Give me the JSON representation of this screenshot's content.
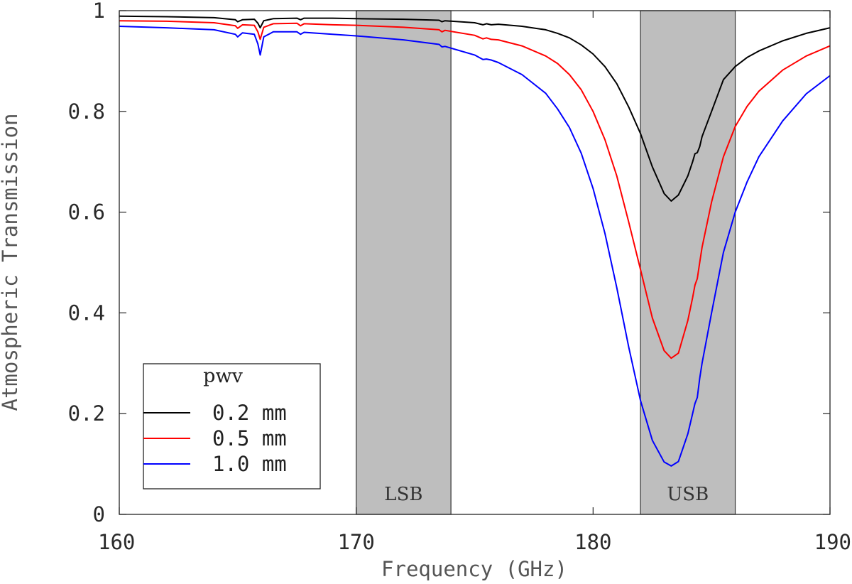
{
  "chart_data": {
    "type": "line",
    "xlabel": "Frequency (GHz)",
    "ylabel": "Atmospheric Transmission",
    "xlim": [
      160,
      190
    ],
    "ylim": [
      0,
      1
    ],
    "x_ticks": [
      160,
      170,
      180,
      190
    ],
    "y_ticks": [
      0,
      0.2,
      0.4,
      0.6,
      0.8,
      1
    ],
    "x_tick_labels": [
      "160",
      "170",
      "180",
      "190"
    ],
    "y_tick_labels": [
      "0",
      "0.2",
      "0.4",
      "0.6",
      "0.8",
      "1"
    ],
    "grid": false,
    "bands": [
      {
        "label": "LSB",
        "from": 170,
        "to": 174,
        "color": "#bebebe"
      },
      {
        "label": "USB",
        "from": 182,
        "to": 186,
        "color": "#bebebe"
      }
    ],
    "legend": {
      "title": "pwv",
      "placement": "bottom-left",
      "entries": [
        "0.2 mm",
        "0.5 mm",
        "1.0 mm"
      ]
    },
    "series": [
      {
        "name": "0.2 mm",
        "color": "#000000",
        "points": [
          [
            160,
            0.989
          ],
          [
            162,
            0.988
          ],
          [
            164,
            0.986
          ],
          [
            164.9,
            0.982
          ],
          [
            165.0,
            0.978
          ],
          [
            165.2,
            0.982
          ],
          [
            165.7,
            0.983
          ],
          [
            165.85,
            0.975
          ],
          [
            165.95,
            0.966
          ],
          [
            166.1,
            0.98
          ],
          [
            166.5,
            0.984
          ],
          [
            167.5,
            0.985
          ],
          [
            167.65,
            0.982
          ],
          [
            167.8,
            0.985
          ],
          [
            169,
            0.985
          ],
          [
            170,
            0.984
          ],
          [
            172,
            0.983
          ],
          [
            173.5,
            0.981
          ],
          [
            173.62,
            0.978
          ],
          [
            173.75,
            0.98
          ],
          [
            175,
            0.976
          ],
          [
            175.35,
            0.972
          ],
          [
            175.5,
            0.974
          ],
          [
            175.7,
            0.972
          ],
          [
            176,
            0.973
          ],
          [
            177,
            0.969
          ],
          [
            178,
            0.962
          ],
          [
            178.5,
            0.955
          ],
          [
            179,
            0.946
          ],
          [
            179.5,
            0.932
          ],
          [
            180,
            0.914
          ],
          [
            180.5,
            0.889
          ],
          [
            181,
            0.855
          ],
          [
            181.5,
            0.809
          ],
          [
            182,
            0.756
          ],
          [
            182.5,
            0.69
          ],
          [
            183,
            0.637
          ],
          [
            183.3,
            0.622
          ],
          [
            183.6,
            0.634
          ],
          [
            184,
            0.672
          ],
          [
            184.2,
            0.7
          ],
          [
            184.3,
            0.716
          ],
          [
            184.4,
            0.718
          ],
          [
            184.5,
            0.73
          ],
          [
            184.6,
            0.75
          ],
          [
            185,
            0.8
          ],
          [
            185.5,
            0.863
          ],
          [
            186,
            0.889
          ],
          [
            186.5,
            0.907
          ],
          [
            187,
            0.92
          ],
          [
            188,
            0.94
          ],
          [
            189,
            0.955
          ],
          [
            190,
            0.966
          ]
        ]
      },
      {
        "name": "0.5 mm",
        "color": "#ff0000",
        "points": [
          [
            160,
            0.98
          ],
          [
            162,
            0.979
          ],
          [
            164,
            0.976
          ],
          [
            164.9,
            0.97
          ],
          [
            165.0,
            0.965
          ],
          [
            165.2,
            0.972
          ],
          [
            165.7,
            0.971
          ],
          [
            165.85,
            0.958
          ],
          [
            165.95,
            0.943
          ],
          [
            166.1,
            0.967
          ],
          [
            166.5,
            0.974
          ],
          [
            167.5,
            0.975
          ],
          [
            167.65,
            0.97
          ],
          [
            167.8,
            0.974
          ],
          [
            169,
            0.972
          ],
          [
            170,
            0.971
          ],
          [
            172,
            0.967
          ],
          [
            173.5,
            0.962
          ],
          [
            173.62,
            0.958
          ],
          [
            173.75,
            0.961
          ],
          [
            175,
            0.951
          ],
          [
            175.35,
            0.944
          ],
          [
            175.5,
            0.946
          ],
          [
            175.7,
            0.943
          ],
          [
            176,
            0.942
          ],
          [
            177,
            0.93
          ],
          [
            178,
            0.91
          ],
          [
            178.5,
            0.895
          ],
          [
            179,
            0.873
          ],
          [
            179.5,
            0.843
          ],
          [
            180,
            0.8
          ],
          [
            180.5,
            0.744
          ],
          [
            181,
            0.672
          ],
          [
            181.5,
            0.581
          ],
          [
            182,
            0.486
          ],
          [
            182.5,
            0.39
          ],
          [
            183,
            0.325
          ],
          [
            183.3,
            0.31
          ],
          [
            183.6,
            0.32
          ],
          [
            184,
            0.385
          ],
          [
            184.2,
            0.43
          ],
          [
            184.3,
            0.455
          ],
          [
            184.4,
            0.468
          ],
          [
            184.5,
            0.5
          ],
          [
            184.6,
            0.53
          ],
          [
            185,
            0.62
          ],
          [
            185.5,
            0.71
          ],
          [
            186,
            0.77
          ],
          [
            186.5,
            0.81
          ],
          [
            187,
            0.84
          ],
          [
            188,
            0.882
          ],
          [
            189,
            0.91
          ],
          [
            190,
            0.93
          ]
        ]
      },
      {
        "name": "1.0 mm",
        "color": "#0000ff",
        "points": [
          [
            160,
            0.969
          ],
          [
            162,
            0.966
          ],
          [
            164,
            0.962
          ],
          [
            164.9,
            0.953
          ],
          [
            165.0,
            0.948
          ],
          [
            165.2,
            0.956
          ],
          [
            165.7,
            0.953
          ],
          [
            165.85,
            0.934
          ],
          [
            165.95,
            0.912
          ],
          [
            166.1,
            0.948
          ],
          [
            166.5,
            0.958
          ],
          [
            167.5,
            0.958
          ],
          [
            167.65,
            0.953
          ],
          [
            167.8,
            0.957
          ],
          [
            169,
            0.953
          ],
          [
            170,
            0.95
          ],
          [
            172,
            0.942
          ],
          [
            173.5,
            0.933
          ],
          [
            173.62,
            0.928
          ],
          [
            173.75,
            0.929
          ],
          [
            175,
            0.912
          ],
          [
            175.35,
            0.903
          ],
          [
            175.5,
            0.904
          ],
          [
            175.7,
            0.902
          ],
          [
            176,
            0.897
          ],
          [
            177,
            0.873
          ],
          [
            178,
            0.836
          ],
          [
            178.5,
            0.805
          ],
          [
            179,
            0.768
          ],
          [
            179.5,
            0.717
          ],
          [
            180,
            0.647
          ],
          [
            180.5,
            0.558
          ],
          [
            181,
            0.45
          ],
          [
            181.5,
            0.333
          ],
          [
            182,
            0.226
          ],
          [
            182.5,
            0.147
          ],
          [
            183,
            0.104
          ],
          [
            183.3,
            0.096
          ],
          [
            183.6,
            0.105
          ],
          [
            184,
            0.16
          ],
          [
            184.2,
            0.2
          ],
          [
            184.3,
            0.22
          ],
          [
            184.4,
            0.232
          ],
          [
            184.5,
            0.27
          ],
          [
            184.6,
            0.3
          ],
          [
            185,
            0.4
          ],
          [
            185.5,
            0.52
          ],
          [
            186,
            0.6
          ],
          [
            186.5,
            0.66
          ],
          [
            187,
            0.71
          ],
          [
            188,
            0.781
          ],
          [
            189,
            0.835
          ],
          [
            190,
            0.871
          ]
        ]
      }
    ]
  }
}
